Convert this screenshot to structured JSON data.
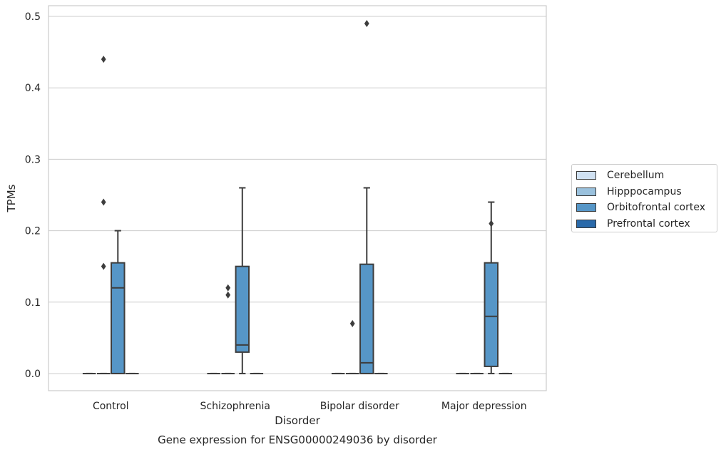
{
  "chart_data": {
    "type": "box",
    "caption": "Gene expression for ENSG00000249036 by disorder",
    "xlabel": "Disorder",
    "ylabel": "TPMs",
    "ylim": [
      -0.024,
      0.515
    ],
    "yticks": [
      "0.0",
      "0.1",
      "0.2",
      "0.3",
      "0.4",
      "0.5"
    ],
    "ytick_values": [
      0.0,
      0.1,
      0.2,
      0.3,
      0.4,
      0.5
    ],
    "grid": true,
    "legend_position": "right",
    "categories": [
      "Control",
      "Schizophrenia",
      "Bipolar disorder",
      "Major depression"
    ],
    "series": [
      {
        "name": "Cerebellum",
        "color": "#d0e1f2",
        "boxes": [
          {
            "category": "Control",
            "whisker_low": 0,
            "q1": 0,
            "median": 0,
            "q3": 0,
            "whisker_high": 0,
            "outliers": []
          },
          {
            "category": "Schizophrenia",
            "whisker_low": 0,
            "q1": 0,
            "median": 0,
            "q3": 0,
            "whisker_high": 0,
            "outliers": []
          },
          {
            "category": "Bipolar disorder",
            "whisker_low": 0,
            "q1": 0,
            "median": 0,
            "q3": 0,
            "whisker_high": 0,
            "outliers": []
          },
          {
            "category": "Major depression",
            "whisker_low": 0,
            "q1": 0,
            "median": 0,
            "q3": 0,
            "whisker_high": 0,
            "outliers": []
          }
        ]
      },
      {
        "name": "Hipppocampus",
        "color": "#9ac1dd",
        "boxes": [
          {
            "category": "Control",
            "whisker_low": 0,
            "q1": 0,
            "median": 0,
            "q3": 0,
            "whisker_high": 0,
            "outliers": [
              0.15,
              0.24,
              0.44
            ]
          },
          {
            "category": "Schizophrenia",
            "whisker_low": 0,
            "q1": 0,
            "median": 0,
            "q3": 0,
            "whisker_high": 0,
            "outliers": [
              0.11,
              0.12
            ]
          },
          {
            "category": "Bipolar disorder",
            "whisker_low": 0,
            "q1": 0,
            "median": 0,
            "q3": 0,
            "whisker_high": 0,
            "outliers": [
              0.07
            ]
          },
          {
            "category": "Major depression",
            "whisker_low": 0,
            "q1": 0,
            "median": 0,
            "q3": 0,
            "whisker_high": 0,
            "outliers": []
          }
        ]
      },
      {
        "name": "Orbitofrontal cortex",
        "color": "#5696c7",
        "boxes": [
          {
            "category": "Control",
            "whisker_low": 0,
            "q1": 0,
            "median": 0.12,
            "q3": 0.155,
            "whisker_high": 0.2,
            "outliers": []
          },
          {
            "category": "Schizophrenia",
            "whisker_low": 0,
            "q1": 0.03,
            "median": 0.04,
            "q3": 0.15,
            "whisker_high": 0.26,
            "outliers": []
          },
          {
            "category": "Bipolar disorder",
            "whisker_low": 0,
            "q1": 0,
            "median": 0.015,
            "q3": 0.153,
            "whisker_high": 0.26,
            "outliers": [
              0.49
            ]
          },
          {
            "category": "Major depression",
            "whisker_low": 0,
            "q1": 0.01,
            "median": 0.08,
            "q3": 0.155,
            "whisker_high": 0.24,
            "outliers": [
              0.21
            ]
          }
        ]
      },
      {
        "name": "Prefrontal cortex",
        "color": "#2a6aaa",
        "boxes": [
          {
            "category": "Control",
            "whisker_low": 0,
            "q1": 0,
            "median": 0,
            "q3": 0,
            "whisker_high": 0,
            "outliers": []
          },
          {
            "category": "Schizophrenia",
            "whisker_low": 0,
            "q1": 0,
            "median": 0,
            "q3": 0,
            "whisker_high": 0,
            "outliers": []
          },
          {
            "category": "Bipolar disorder",
            "whisker_low": 0,
            "q1": 0,
            "median": 0,
            "q3": 0,
            "whisker_high": 0,
            "outliers": []
          },
          {
            "category": "Major depression",
            "whisker_low": 0,
            "q1": 0,
            "median": 0,
            "q3": 0,
            "whisker_high": 0,
            "outliers": []
          }
        ]
      }
    ]
  }
}
